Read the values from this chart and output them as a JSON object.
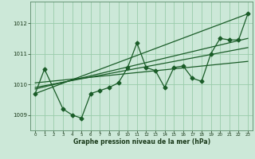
{
  "background_color": "#cce8d8",
  "plot_bg_color": "#cce8d8",
  "grid_color": "#99ccaa",
  "line_color": "#1a5c28",
  "xlabel": "Graphe pression niveau de la mer (hPa)",
  "xlim": [
    -0.5,
    23.5
  ],
  "ylim": [
    1008.5,
    1012.7
  ],
  "yticks": [
    1009,
    1010,
    1011,
    1012
  ],
  "xticks": [
    0,
    1,
    2,
    3,
    4,
    5,
    6,
    7,
    8,
    9,
    10,
    11,
    12,
    13,
    14,
    15,
    16,
    17,
    18,
    19,
    20,
    21,
    22,
    23
  ],
  "main_x": [
    0,
    1,
    3,
    4,
    5,
    6,
    7,
    8,
    9,
    10,
    11,
    12,
    13,
    14,
    15,
    16,
    17,
    18,
    19,
    20,
    21,
    22,
    23
  ],
  "main_y": [
    1009.7,
    1010.5,
    1009.2,
    1009.0,
    1008.9,
    1009.7,
    1009.8,
    1009.9,
    1010.05,
    1010.55,
    1011.35,
    1010.55,
    1010.45,
    1009.9,
    1010.55,
    1010.6,
    1010.2,
    1010.1,
    1011.0,
    1011.5,
    1011.45,
    1011.45,
    1012.3
  ],
  "trend1_x": [
    0,
    23
  ],
  "trend1_y": [
    1010.05,
    1010.75
  ],
  "trend2_x": [
    0,
    23
  ],
  "trend2_y": [
    1009.7,
    1012.3
  ],
  "trend3_x": [
    0,
    23
  ],
  "trend3_y": [
    1009.85,
    1011.5
  ],
  "trend4_x": [
    0,
    23
  ],
  "trend4_y": [
    1009.9,
    1011.2
  ]
}
